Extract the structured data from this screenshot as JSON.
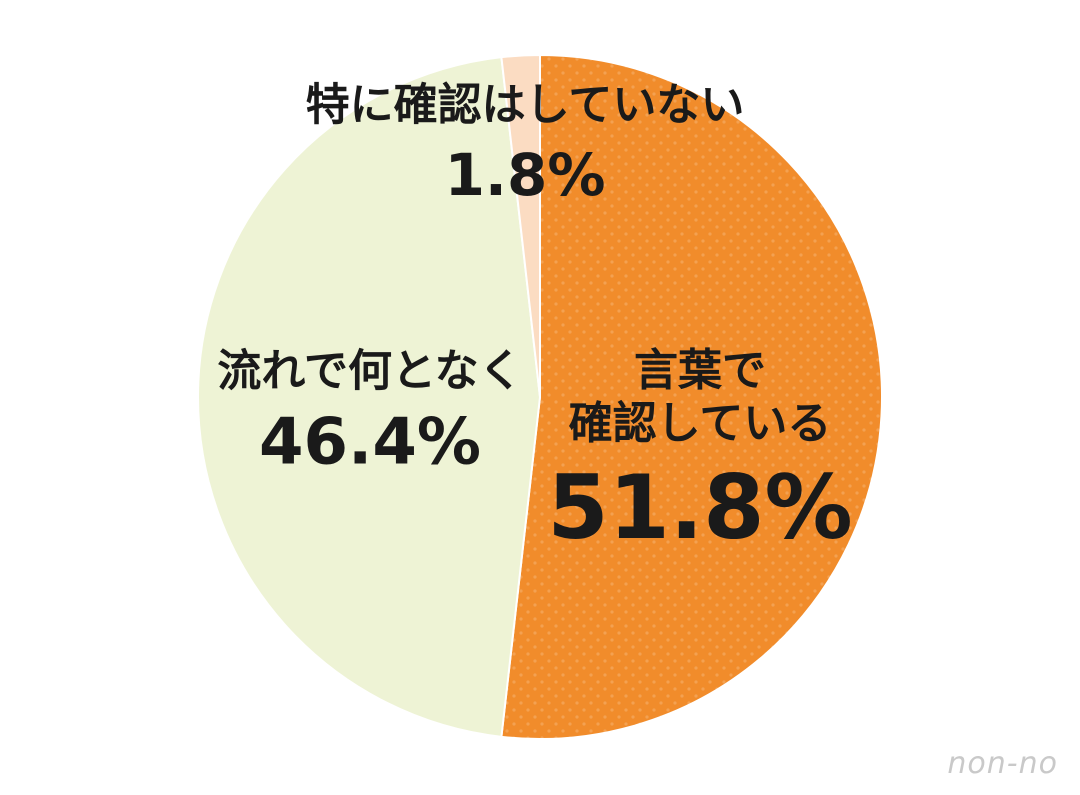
{
  "chart_data": {
    "type": "pie",
    "categories": [
      "言葉で\n確認している",
      "流れで何となく",
      "特に確認はしていない"
    ],
    "values": [
      51.8,
      46.4,
      1.8
    ],
    "value_labels": [
      "51.8%",
      "46.4%",
      "1.8%"
    ],
    "colors": [
      "#f18c2b",
      "#eef3d5",
      "#fbdcc2"
    ],
    "watermark": "non-no"
  }
}
